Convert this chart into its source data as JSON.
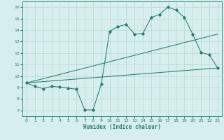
{
  "xlabel": "Humidex (Indice chaleur)",
  "bg_color": "#d6eeed",
  "line_color": "#2a7d6e",
  "grid_color": "#b8d8d4",
  "xlim": [
    -0.5,
    23.5
  ],
  "ylim": [
    6.5,
    16.5
  ],
  "xticks": [
    0,
    1,
    2,
    3,
    4,
    5,
    6,
    7,
    8,
    9,
    10,
    11,
    12,
    13,
    14,
    15,
    16,
    17,
    18,
    19,
    20,
    21,
    22,
    23
  ],
  "yticks": [
    7,
    8,
    9,
    10,
    11,
    12,
    13,
    14,
    15,
    16
  ],
  "line1_x": [
    0,
    1,
    2,
    3,
    4,
    5,
    6,
    7,
    8,
    9,
    10,
    11,
    12,
    13,
    14,
    15,
    16,
    17,
    18,
    19,
    20,
    21,
    22,
    23
  ],
  "line1_y": [
    9.4,
    9.1,
    8.9,
    9.1,
    9.05,
    8.95,
    8.85,
    7.05,
    7.05,
    9.3,
    13.9,
    14.3,
    14.5,
    13.65,
    13.7,
    15.1,
    15.35,
    16.0,
    15.75,
    15.1,
    13.65,
    12.05,
    11.85,
    10.7
  ],
  "line2_x": [
    0,
    23
  ],
  "line2_y": [
    9.4,
    13.65
  ],
  "line3_x": [
    0,
    23
  ],
  "line3_y": [
    9.4,
    10.7
  ]
}
